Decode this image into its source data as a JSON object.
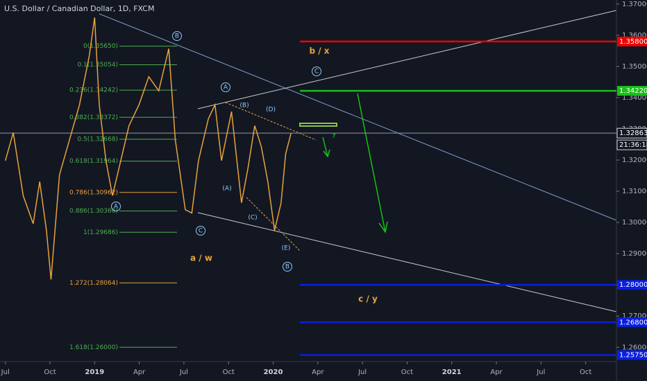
{
  "chart_data": {
    "type": "line",
    "title": "U.S. Dollar / Canadian Dollar, 1D, FXCM",
    "color": "#e8a33c",
    "x": [
      0.0,
      0.53,
      1.2,
      1.87,
      2.31,
      2.76,
      3.07,
      3.64,
      4.31,
      4.98,
      5.64,
      6.0,
      6.31,
      6.76,
      7.2,
      7.64,
      8.31,
      8.98,
      9.64,
      10.31,
      10.98,
      11.42,
      12.09,
      12.53,
      12.98,
      13.64,
      14.09,
      14.53,
      15.2,
      15.87,
      16.31,
      16.76,
      17.2,
      17.64,
      18.09,
      18.53,
      18.84,
      19.2
    ],
    "values": [
      1.3198,
      1.3288,
      1.3086,
      1.2996,
      1.3131,
      1.2974,
      1.2817,
      1.3153,
      1.3265,
      1.3377,
      1.3534,
      1.3657,
      1.3377,
      1.3198,
      1.3086,
      1.3175,
      1.331,
      1.3377,
      1.3467,
      1.3422,
      1.3557,
      1.3265,
      1.3041,
      1.303,
      1.3198,
      1.3332,
      1.3377,
      1.3198,
      1.3355,
      1.3063,
      1.3175,
      1.331,
      1.3243,
      1.3131,
      1.2974,
      1.3063,
      1.322,
      1.3286
    ],
    "xlim": [
      -0.36,
      41.07
    ],
    "xticks": [
      {
        "value": 0,
        "label": "Jul"
      },
      {
        "value": 3,
        "label": "Oct"
      },
      {
        "value": 6,
        "label": "2019"
      },
      {
        "value": 9,
        "label": "Apr"
      },
      {
        "value": 12,
        "label": "Jul"
      },
      {
        "value": 15,
        "label": "Oct"
      },
      {
        "value": 18,
        "label": "2020"
      },
      {
        "value": 21,
        "label": "Apr"
      },
      {
        "value": 24,
        "label": "Jul"
      },
      {
        "value": 27,
        "label": "Oct"
      },
      {
        "value": 30,
        "label": "2021"
      },
      {
        "value": 33,
        "label": "Apr"
      },
      {
        "value": 36,
        "label": "Jul"
      },
      {
        "value": 39,
        "label": "Oct"
      }
    ],
    "ylim": [
      1.2554,
      1.3713
    ],
    "yticks": [
      {
        "value": 1.26,
        "label": "1.26000"
      },
      {
        "value": 1.27,
        "label": "1.27000"
      },
      {
        "value": 1.28,
        "label": "1.28000"
      },
      {
        "value": 1.29,
        "label": "1.29000"
      },
      {
        "value": 1.3,
        "label": "1.30000"
      },
      {
        "value": 1.31,
        "label": "1.31000"
      },
      {
        "value": 1.32,
        "label": "1.32000"
      },
      {
        "value": 1.33,
        "label": "1.33000"
      },
      {
        "value": 1.34,
        "label": "1.34000"
      },
      {
        "value": 1.35,
        "label": "1.35000"
      },
      {
        "value": 1.36,
        "label": "1.36000"
      },
      {
        "value": 1.37,
        "label": "1.37000"
      }
    ],
    "last_price": {
      "value": 1.32863,
      "label": "1.32863"
    },
    "countdown": "21:36:18",
    "levels": [
      {
        "value": 1.358,
        "label": "1.35800",
        "color": "#f00000"
      },
      {
        "value": 1.3422,
        "label": "1.34220",
        "color": "#18c018"
      },
      {
        "value": 1.28,
        "label": "1.28000",
        "color": "#0a1ee0"
      },
      {
        "value": 1.268,
        "label": "1.26800",
        "color": "#0a1ee0"
      },
      {
        "value": 1.2575,
        "label": "1.25750",
        "color": "#0a1ee0"
      }
    ],
    "fib": [
      {
        "label": "0(1.35650)",
        "value": 1.3565,
        "color": "#4caf50"
      },
      {
        "label": "0.1(1.35054)",
        "value": 1.35054,
        "color": "#4caf50"
      },
      {
        "label": "0.236(1.34242)",
        "value": 1.34242,
        "color": "#4caf50"
      },
      {
        "label": "0.382(1.33372)",
        "value": 1.33372,
        "color": "#4caf50"
      },
      {
        "label": "0.5(1.32668)",
        "value": 1.32668,
        "color": "#4caf50"
      },
      {
        "label": "0.618(1.31964)",
        "value": 1.31964,
        "color": "#4caf50"
      },
      {
        "label": "0.786(1.30962)",
        "value": 1.30962,
        "color": "#e8a33c"
      },
      {
        "label": "0.886(1.30366)",
        "value": 1.30366,
        "color": "#4caf50"
      },
      {
        "label": "1(1.29686)",
        "value": 1.29686,
        "color": "#4caf50"
      },
      {
        "label": "1.272(1.28064)",
        "value": 1.28064,
        "color": "#e8a33c"
      },
      {
        "label": "1.618(1.26000)",
        "value": 1.26,
        "color": "#4caf50"
      }
    ],
    "annotations": [
      "B",
      "A",
      "(B)",
      "(D)",
      "(A)",
      "(C)",
      "(E)",
      "B",
      "C",
      "A",
      "C",
      "b / x",
      "a / w",
      "c / y",
      "?"
    ]
  }
}
